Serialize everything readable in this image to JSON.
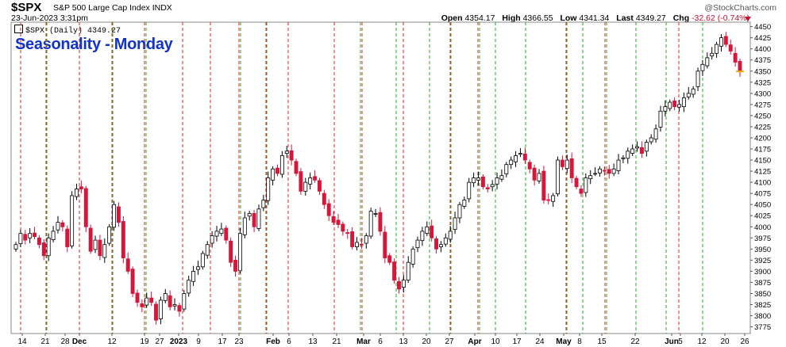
{
  "header": {
    "symbol": "$SPX",
    "description": "S&P 500 Large Cap Index  INDX",
    "source": "@StockCharts.com",
    "date": "23-Jun-2023 3:31pm",
    "open_label": "Open",
    "open": "4354.17",
    "high_label": "High",
    "high": "4366.55",
    "low_label": "Low",
    "low": "4341.34",
    "last_label": "Last",
    "last": "4349.27",
    "chg_label": "Chg",
    "chg": "-32.62 (-0.74%)"
  },
  "legend": "$SPX (Daily) 4349.27",
  "annotation": "Seasonality - Monday",
  "colors": {
    "up": "#ffffff",
    "down": "#d4173b",
    "up_stroke": "#000000",
    "red_line": "#e02020",
    "green_line": "#22aa22",
    "annotation": "#1133cc",
    "last_marker": "#f0b000"
  },
  "chart_data": {
    "type": "candlestick",
    "title": "Seasonality - Monday",
    "ylim": [
      3760,
      4460
    ],
    "y_ticks": [
      3775,
      3800,
      3825,
      3850,
      3875,
      3900,
      3925,
      3950,
      3975,
      4000,
      4025,
      4050,
      4075,
      4100,
      4125,
      4150,
      4175,
      4200,
      4225,
      4250,
      4275,
      4300,
      4325,
      4350,
      4375,
      4400,
      4425,
      4450
    ],
    "x_tick_labels": [
      "14",
      "21",
      "28",
      "Dec",
      "12",
      "19",
      "27",
      "2023",
      "9",
      "17",
      "23",
      "Feb",
      "6",
      "13",
      "21",
      "Mar",
      "6",
      "13",
      "20",
      "27",
      "Apr",
      "10",
      "17",
      "24",
      "May",
      "8",
      "15",
      "22",
      "Jun",
      "5",
      "12",
      "20",
      "26"
    ],
    "grid": true,
    "vertical_markers": [
      {
        "color": "red",
        "count": 18
      },
      {
        "color": "green",
        "count": 15
      }
    ],
    "series": [
      {
        "values": [
          3960,
          3985,
          3970,
          3985,
          3978,
          3960,
          3935,
          3975,
          3990,
          4010,
          4000,
          3955,
          4070,
          4085,
          4085,
          4000,
          3945,
          3970,
          3935,
          3960,
          4000,
          4050,
          4010,
          3930,
          3900,
          3850,
          3830,
          3820,
          3840,
          3830,
          3790,
          3835,
          3850,
          3820,
          3825,
          3810,
          3850,
          3880,
          3900,
          3910,
          3940,
          3960,
          3980,
          3990,
          3995,
          3970,
          3920,
          3900,
          3985,
          4020,
          4030,
          4000,
          4040,
          4060,
          4110,
          4130,
          4120,
          4160,
          4170,
          4150,
          4120,
          4080,
          4100,
          4110,
          4105,
          4080,
          4050,
          4025,
          4010,
          4005,
          3990,
          3985,
          3955,
          3965,
          3960,
          3980,
          4035,
          4030,
          3990,
          3930,
          3920,
          3880,
          3860,
          3880,
          3920,
          3950,
          3970,
          3990,
          4000,
          3975,
          3950,
          3960,
          3975,
          3990,
          4020,
          4050,
          4060,
          4100,
          4110,
          4110,
          4090,
          4085,
          4095,
          4110,
          4115,
          4140,
          4150,
          4160,
          4165,
          4150,
          4130,
          4105,
          4120,
          4060,
          4060,
          4070,
          4150,
          4135,
          4150,
          4110,
          4090,
          4075,
          4110,
          4115,
          4120,
          4130,
          4125,
          4120,
          4130,
          4150,
          4155,
          4170,
          4175,
          4180,
          4165,
          4190,
          4200,
          4220,
          4260,
          4270,
          4280,
          4270,
          4275,
          4290,
          4300,
          4310,
          4350,
          4365,
          4380,
          4390,
          4410,
          4425,
          4410,
          4395,
          4370,
          4349.27
        ]
      }
    ]
  }
}
